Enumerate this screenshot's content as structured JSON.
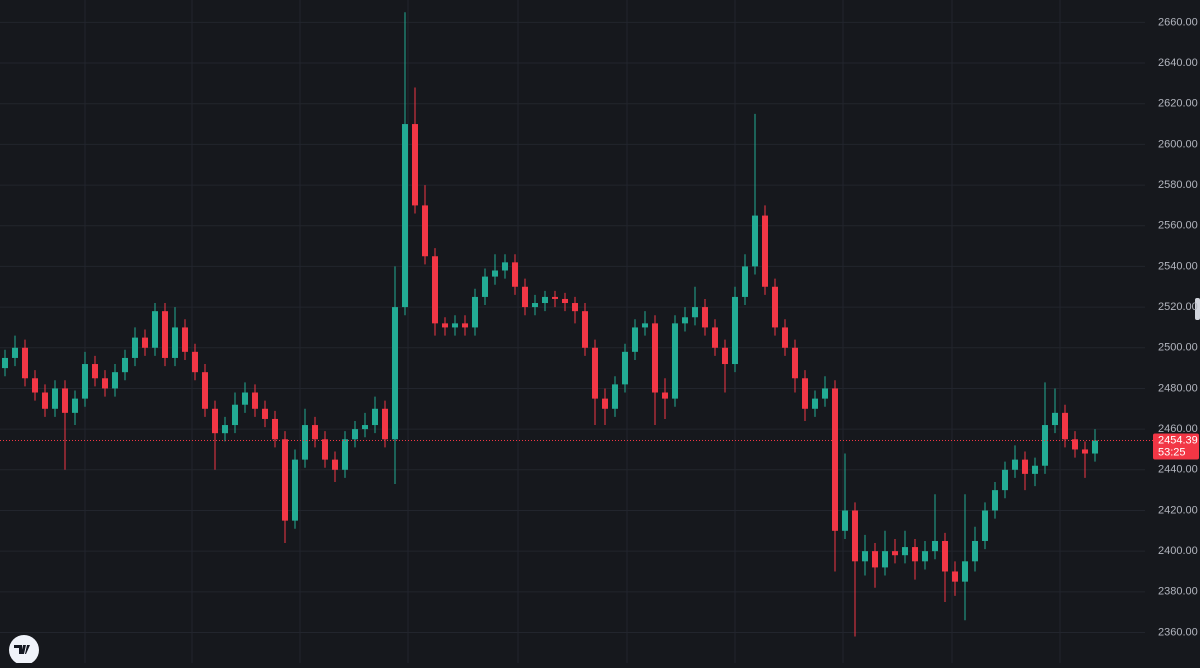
{
  "chart_data": {
    "type": "candlestick",
    "ylim": [
      2345,
      2671
    ],
    "yticks": [
      {
        "value": 2360,
        "label": "2360.00"
      },
      {
        "value": 2380,
        "label": "2380.00"
      },
      {
        "value": 2400,
        "label": "2400.00"
      },
      {
        "value": 2420,
        "label": "2420.00"
      },
      {
        "value": 2440,
        "label": "2440.00"
      },
      {
        "value": 2460,
        "label": "2460.00"
      },
      {
        "value": 2480,
        "label": "2480.00"
      },
      {
        "value": 2500,
        "label": "2500.00"
      },
      {
        "value": 2520,
        "label": "2520.00"
      },
      {
        "value": 2540,
        "label": "2540.00"
      },
      {
        "value": 2560,
        "label": "2560.00"
      },
      {
        "value": 2580,
        "label": "2580.00"
      },
      {
        "value": 2600,
        "label": "2600.00"
      },
      {
        "value": 2620,
        "label": "2620.00"
      },
      {
        "value": 2640,
        "label": "2640.00"
      },
      {
        "value": 2660,
        "label": "2660.00"
      }
    ],
    "grid": true,
    "up_color": "#22ab94",
    "down_color": "#f23645",
    "last_price": 2454.39,
    "countdown": "53:25",
    "open": [
      2490,
      2495,
      2500,
      2485,
      2478,
      2470,
      2480,
      2468,
      2475,
      2492,
      2485,
      2480,
      2488,
      2495,
      2505,
      2500,
      2518,
      2495,
      2510,
      2498,
      2488,
      2470,
      2458,
      2462,
      2472,
      2478,
      2470,
      2465,
      2455,
      2415,
      2445,
      2462,
      2455,
      2445,
      2440,
      2455,
      2460,
      2462,
      2470,
      2455,
      2520,
      2610,
      2570,
      2545,
      2512,
      2510,
      2512,
      2510,
      2525,
      2535,
      2538,
      2542,
      2530,
      2520,
      2522,
      2525,
      2524,
      2522,
      2518,
      2500,
      2475,
      2470,
      2482,
      2498,
      2510,
      2512,
      2478,
      2475,
      2512,
      2515,
      2520,
      2510,
      2500,
      2492,
      2525,
      2540,
      2565,
      2530,
      2510,
      2500,
      2485,
      2470,
      2475,
      2480,
      2410,
      2420,
      2395,
      2400,
      2392,
      2400,
      2398,
      2402,
      2395,
      2400,
      2405,
      2390,
      2385,
      2395,
      2405,
      2420,
      2430,
      2440,
      2445,
      2438,
      2442,
      2462,
      2468,
      2455,
      2450,
      2448
    ],
    "high": [
      2499,
      2506,
      2504,
      2489,
      2482,
      2484,
      2484,
      2479,
      2498,
      2496,
      2489,
      2492,
      2499,
      2510,
      2509,
      2522,
      2522,
      2520,
      2514,
      2502,
      2492,
      2474,
      2466,
      2478,
      2483,
      2482,
      2474,
      2469,
      2459,
      2450,
      2470,
      2466,
      2459,
      2449,
      2459,
      2464,
      2468,
      2476,
      2474,
      2540,
      2665,
      2628,
      2580,
      2549,
      2515,
      2516,
      2516,
      2529,
      2539,
      2546,
      2546,
      2546,
      2534,
      2526,
      2528,
      2528,
      2527,
      2525,
      2522,
      2504,
      2480,
      2486,
      2502,
      2514,
      2518,
      2516,
      2485,
      2516,
      2520,
      2530,
      2524,
      2514,
      2504,
      2530,
      2546,
      2615,
      2570,
      2534,
      2514,
      2504,
      2489,
      2479,
      2486,
      2484,
      2448,
      2424,
      2408,
      2404,
      2410,
      2406,
      2410,
      2406,
      2405,
      2428,
      2409,
      2395,
      2428,
      2412,
      2424,
      2434,
      2444,
      2452,
      2449,
      2446,
      2483,
      2480,
      2472,
      2459,
      2454,
      2460
    ],
    "low": [
      2486,
      2491,
      2481,
      2474,
      2466,
      2466,
      2440,
      2462,
      2471,
      2481,
      2476,
      2476,
      2484,
      2491,
      2496,
      2496,
      2491,
      2491,
      2494,
      2484,
      2466,
      2440,
      2454,
      2458,
      2468,
      2466,
      2461,
      2451,
      2404,
      2411,
      2441,
      2451,
      2441,
      2434,
      2436,
      2451,
      2456,
      2458,
      2451,
      2433,
      2516,
      2566,
      2541,
      2506,
      2506,
      2506,
      2506,
      2506,
      2521,
      2531,
      2534,
      2526,
      2516,
      2516,
      2518,
      2520,
      2518,
      2512,
      2496,
      2462,
      2462,
      2466,
      2478,
      2494,
      2506,
      2462,
      2465,
      2471,
      2508,
      2511,
      2506,
      2496,
      2478,
      2488,
      2521,
      2536,
      2526,
      2506,
      2496,
      2478,
      2464,
      2466,
      2471,
      2390,
      2406,
      2358,
      2388,
      2382,
      2388,
      2394,
      2394,
      2386,
      2391,
      2396,
      2375,
      2378,
      2366,
      2390,
      2401,
      2416,
      2426,
      2436,
      2430,
      2432,
      2438,
      2458,
      2451,
      2446,
      2436,
      2444
    ],
    "close": [
      2495,
      2500,
      2485,
      2478,
      2470,
      2480,
      2468,
      2475,
      2492,
      2485,
      2480,
      2488,
      2495,
      2505,
      2500,
      2518,
      2495,
      2510,
      2498,
      2488,
      2470,
      2458,
      2462,
      2472,
      2478,
      2470,
      2465,
      2455,
      2415,
      2445,
      2462,
      2455,
      2445,
      2440,
      2455,
      2460,
      2462,
      2470,
      2455,
      2520,
      2610,
      2570,
      2545,
      2512,
      2510,
      2512,
      2510,
      2525,
      2535,
      2538,
      2542,
      2530,
      2520,
      2522,
      2525,
      2524,
      2522,
      2518,
      2500,
      2475,
      2470,
      2482,
      2498,
      2510,
      2512,
      2478,
      2475,
      2512,
      2515,
      2520,
      2510,
      2500,
      2492,
      2525,
      2540,
      2565,
      2530,
      2510,
      2500,
      2485,
      2470,
      2475,
      2480,
      2410,
      2420,
      2395,
      2400,
      2392,
      2400,
      2398,
      2402,
      2395,
      2400,
      2405,
      2390,
      2385,
      2395,
      2405,
      2420,
      2430,
      2440,
      2445,
      2438,
      2442,
      2462,
      2468,
      2455,
      2450,
      2448,
      2454.39
    ]
  }
}
